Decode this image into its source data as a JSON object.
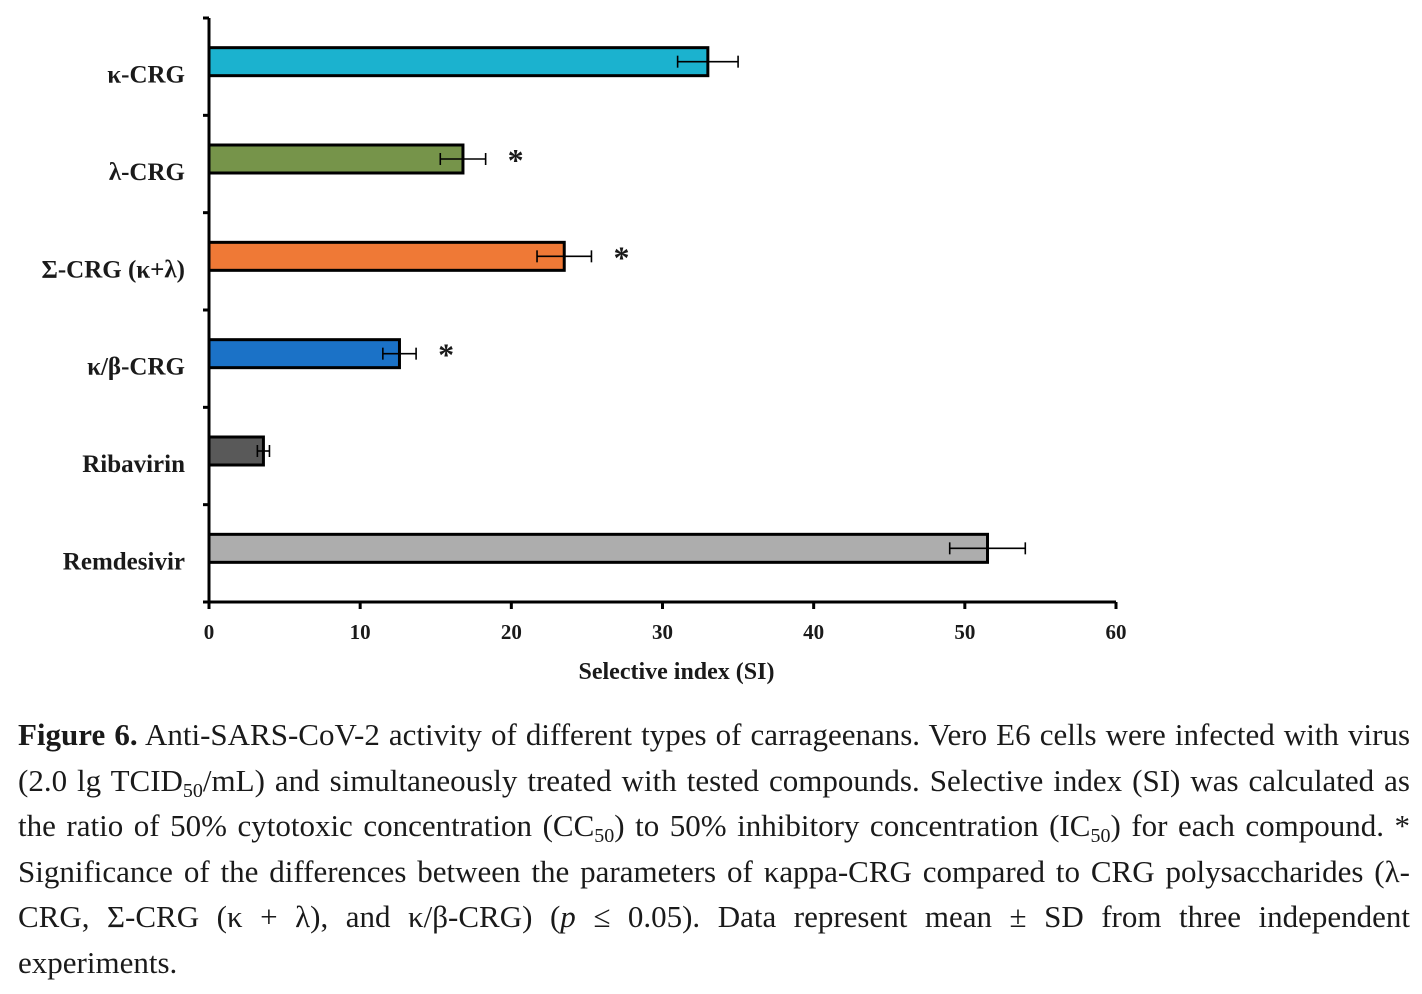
{
  "chart_data": {
    "type": "bar",
    "orientation": "horizontal",
    "categories": [
      "κ-CRG",
      "λ-CRG",
      "Σ-CRG (κ+λ)",
      "κ/β-CRG",
      "Ribavirin",
      "Remdesivir"
    ],
    "values": [
      33.0,
      16.8,
      23.5,
      12.6,
      3.6,
      51.5
    ],
    "errors": [
      2.0,
      1.5,
      1.8,
      1.1,
      0.4,
      2.5
    ],
    "significance": [
      "",
      "*",
      "*",
      "*",
      "",
      ""
    ],
    "colors": [
      "#1bb2cf",
      "#76944a",
      "#ef7936",
      "#1b72c7",
      "#595959",
      "#adadad"
    ],
    "xlabel": "Selective index (SI)",
    "ylabel": "",
    "xlim": [
      0,
      60
    ],
    "xticks": [
      "0",
      "10",
      "20",
      "30",
      "40",
      "50",
      "60"
    ],
    "grid": false,
    "legend": "none"
  },
  "caption": {
    "label": "Figure 6.",
    "p1": " Anti-SARS-CoV-2 activity of different types of carrageenans. Vero E6 cells were infected with virus (2.0 lg TCID",
    "sub1": "50",
    "p2": "/mL) and simultaneously treated with tested compounds. Selective index (SI) was calculated as the ratio of 50% cytotoxic concentration (CC",
    "sub2": "50",
    "p3": ") to 50% inhibitory concentration (IC",
    "sub3": "50",
    "p4": ") for each compound. * Significance of the differences between the parameters of κappa-CRG compared to CRG polysaccharides (λ-CRG, Σ-CRG (κ + λ), and κ/β-CRG) (",
    "p_symbol": "p",
    "p5": " ≤ 0.05). Data represent mean ± SD from three independent experiments."
  }
}
